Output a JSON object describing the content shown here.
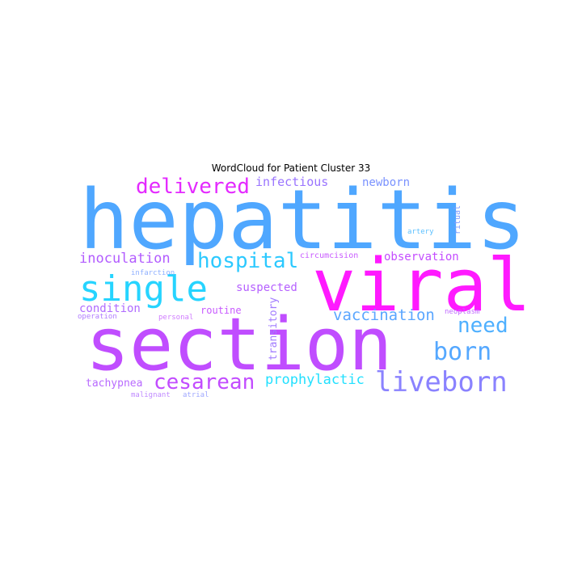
{
  "title": "WordCloud for Patient Cluster 33",
  "words": [
    {
      "text": "hepatitis",
      "color": "#4fa7ff"
    },
    {
      "text": "viral",
      "color": "#ff1aff"
    },
    {
      "text": "section",
      "color": "#c04dff"
    },
    {
      "text": "single",
      "color": "#26d4ff"
    },
    {
      "text": "delivered",
      "color": "#e42aff"
    },
    {
      "text": "hospital",
      "color": "#2cc9ff"
    },
    {
      "text": "liveborn",
      "color": "#8a82ff"
    },
    {
      "text": "born",
      "color": "#55a8ff"
    },
    {
      "text": "cesarean",
      "color": "#c24cff"
    },
    {
      "text": "need",
      "color": "#4fb0ff"
    },
    {
      "text": "inoculation",
      "color": "#b25cff"
    },
    {
      "text": "prophylactic",
      "color": "#22e0ff"
    },
    {
      "text": "vaccination",
      "color": "#5aa6ff"
    },
    {
      "text": "infectious",
      "color": "#9a74ff"
    },
    {
      "text": "newborn",
      "color": "#7a92ff"
    },
    {
      "text": "observation",
      "color": "#c44cff"
    },
    {
      "text": "suspected",
      "color": "#b560ff"
    },
    {
      "text": "condition",
      "color": "#b06cff"
    },
    {
      "text": "transitory",
      "color": "#a27cff"
    },
    {
      "text": "tachypnea",
      "color": "#b86aff"
    },
    {
      "text": "routine",
      "color": "#c85aff"
    },
    {
      "text": "circumcision",
      "color": "#c85aff"
    },
    {
      "text": "ritual",
      "color": "#7e9cff"
    },
    {
      "text": "artery",
      "color": "#5cc0ff"
    },
    {
      "text": "neoplasm",
      "color": "#c06cff"
    },
    {
      "text": "infarction",
      "color": "#8fb0ff"
    },
    {
      "text": "operation",
      "color": "#b07cff"
    },
    {
      "text": "personal",
      "color": "#d07cff"
    },
    {
      "text": "malignant",
      "color": "#c08aff"
    },
    {
      "text": "atrial",
      "color": "#a0a8ff"
    }
  ]
}
